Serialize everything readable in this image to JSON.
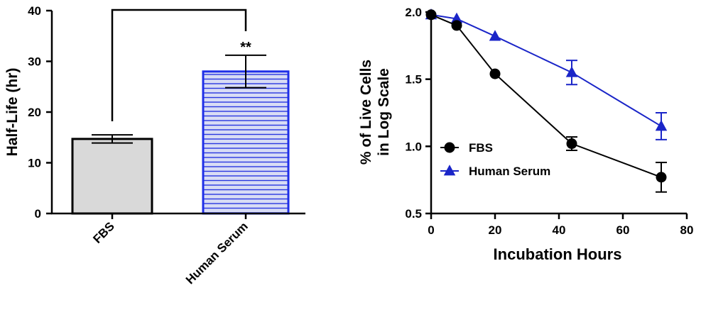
{
  "colors": {
    "fbs_bar_fill": "#d9d9d9",
    "human_bar_fill": "#d8dcf5",
    "human_bar_stripe": "#2a37e0",
    "human_bar_edge": "#1f2fe8",
    "fbs_line": "#000000",
    "human_line": "#1a25c8"
  },
  "chart_data": [
    {
      "type": "bar",
      "ylabel": "Half-Life (hr)",
      "ylim": [
        0,
        40
      ],
      "yticks": [
        "0",
        "10",
        "20",
        "30",
        "40"
      ],
      "categories": [
        "FBS",
        "Human Serum"
      ],
      "values": [
        14.7,
        28.0
      ],
      "errors": [
        0.8,
        3.2
      ],
      "significance": {
        "label": "**",
        "between": [
          "FBS",
          "Human Serum"
        ]
      }
    },
    {
      "type": "line",
      "xlabel": "Incubation Hours",
      "ylabel": [
        "% of Live Cells",
        "in Log Scale"
      ],
      "xlim": [
        0,
        80
      ],
      "ylim": [
        0.5,
        2.0
      ],
      "xticks": [
        "0",
        "20",
        "40",
        "60",
        "80"
      ],
      "yticks": [
        "0.5",
        "1.0",
        "1.5",
        "2.0"
      ],
      "legend_position": "center-left",
      "series": [
        {
          "name": "FBS",
          "marker": "circle",
          "x": [
            0,
            8,
            20,
            44,
            72
          ],
          "y": [
            1.98,
            1.9,
            1.54,
            1.02,
            0.77
          ],
          "errors": [
            0.02,
            0.03,
            0.02,
            0.05,
            0.11
          ]
        },
        {
          "name": "Human Serum",
          "marker": "triangle",
          "x": [
            0,
            8,
            20,
            44,
            72
          ],
          "y": [
            1.98,
            1.95,
            1.82,
            1.55,
            1.15
          ],
          "errors": [
            0.02,
            0.02,
            0.02,
            0.09,
            0.1
          ]
        }
      ]
    }
  ]
}
